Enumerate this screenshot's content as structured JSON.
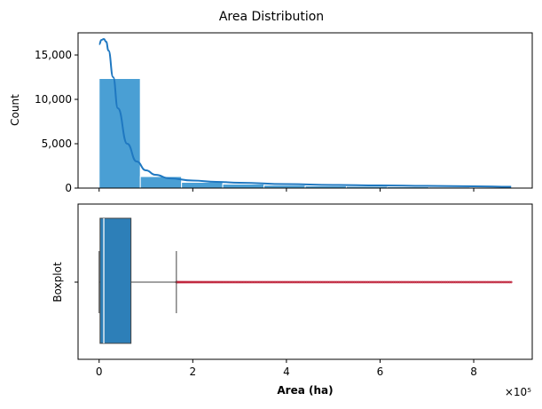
{
  "colors": {
    "bar_fill": "#4a9fd4",
    "bar_stroke": "#ffffff",
    "kde_line": "#1f78c1",
    "box_fill": "#2d7fb8",
    "box_line": "#444444",
    "outlier": "#c0243c"
  },
  "chart_data": [
    {
      "type": "bar",
      "title": "Area Distribution",
      "xlabel": "",
      "ylabel": "Count",
      "ylim": [
        0,
        17500
      ],
      "xlim": [
        -45000,
        925000
      ],
      "yticks": [
        0,
        5000,
        10000,
        15000
      ],
      "ytick_labels": [
        "0",
        "5,000",
        "10,000",
        "15,000"
      ],
      "grid": false,
      "bins": [
        {
          "x0": 0,
          "x1": 88000,
          "count": 12350
        },
        {
          "x0": 88000,
          "x1": 176000,
          "count": 1300
        },
        {
          "x0": 176000,
          "x1": 264000,
          "count": 650
        },
        {
          "x0": 264000,
          "x1": 352000,
          "count": 450
        },
        {
          "x0": 352000,
          "x1": 440000,
          "count": 330
        },
        {
          "x0": 440000,
          "x1": 528000,
          "count": 250
        },
        {
          "x0": 528000,
          "x1": 616000,
          "count": 200
        },
        {
          "x0": 616000,
          "x1": 704000,
          "count": 150
        },
        {
          "x0": 704000,
          "x1": 792000,
          "count": 120
        },
        {
          "x0": 792000,
          "x1": 880000,
          "count": 100
        }
      ],
      "kde": {
        "x": [
          0,
          5000,
          10000,
          15000,
          20000,
          30000,
          40000,
          60000,
          80000,
          100000,
          120000,
          150000,
          200000,
          250000,
          300000,
          400000,
          500000,
          600000,
          700000,
          800000,
          880000
        ],
        "y": [
          16200,
          16700,
          16800,
          16500,
          15500,
          12500,
          9000,
          5000,
          3000,
          2000,
          1500,
          1100,
          850,
          700,
          600,
          450,
          350,
          300,
          250,
          200,
          150
        ]
      }
    },
    {
      "type": "box",
      "xlabel": "Area (ha)",
      "ylabel": "Boxplot",
      "xlim": [
        -45000,
        925000
      ],
      "xticks": [
        0,
        200000,
        400000,
        600000,
        800000
      ],
      "xtick_labels": [
        "0",
        "2",
        "4",
        "6",
        "8"
      ],
      "x_multiplier": "×10⁵",
      "box": {
        "whisker_low": 0,
        "q1": 2000,
        "median": 10000,
        "q3": 68000,
        "whisker_high": 165000
      },
      "outliers_range": [
        165000,
        880000
      ]
    }
  ]
}
